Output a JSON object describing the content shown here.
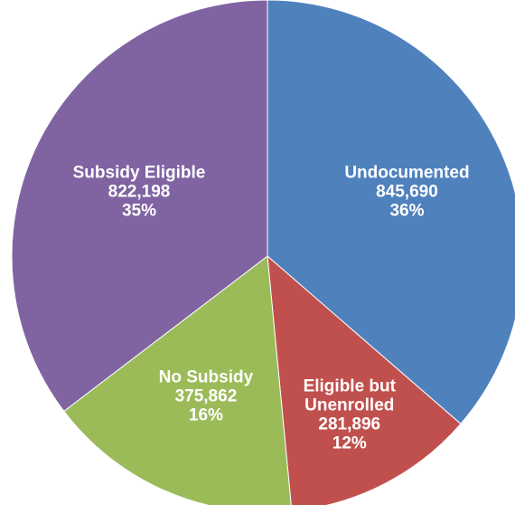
{
  "chart_data": {
    "type": "pie",
    "title": "",
    "start_angle_deg": 0,
    "direction": "clockwise",
    "slices": [
      {
        "label_lines": [
          "Undocumented"
        ],
        "value": 845690,
        "value_text": "845,690",
        "percent_text": "36%",
        "color": "#4F81BD"
      },
      {
        "label_lines": [
          "Eligible but",
          "Unenrolled"
        ],
        "value": 281896,
        "value_text": "281,896",
        "percent_text": "12%",
        "color": "#C0504D"
      },
      {
        "label_lines": [
          "No Subsidy"
        ],
        "value": 375862,
        "value_text": "375,862",
        "percent_text": "16%",
        "color": "#9BBB59"
      },
      {
        "label_lines": [
          "Subsidy Eligible"
        ],
        "value": 822198,
        "value_text": "822,198",
        "percent_text": "35%",
        "color": "#8064A2"
      }
    ]
  }
}
